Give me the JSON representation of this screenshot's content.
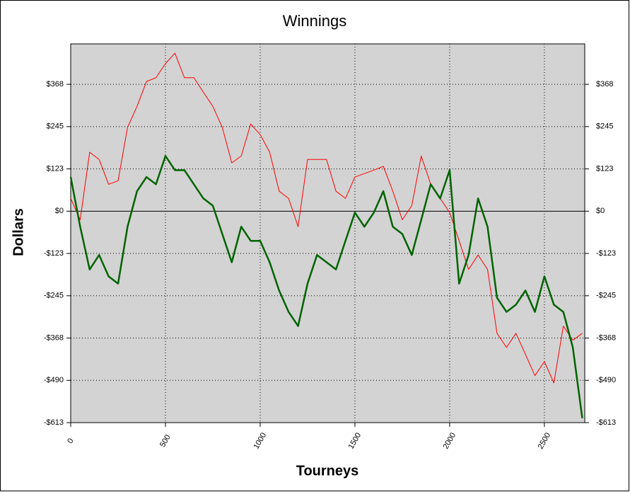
{
  "chart_data": {
    "type": "line",
    "title": "Winnings",
    "x_label": "Tourneys",
    "y_label": "Dollars",
    "x": [
      0,
      50,
      100,
      150,
      200,
      250,
      300,
      350,
      400,
      450,
      500,
      550,
      600,
      650,
      700,
      750,
      800,
      850,
      900,
      950,
      1000,
      1050,
      1100,
      1150,
      1200,
      1250,
      1300,
      1350,
      1400,
      1450,
      1500,
      1550,
      1600,
      1650,
      1700,
      1750,
      1800,
      1850,
      1900,
      1950,
      2000,
      2050,
      2100,
      2150,
      2200,
      2250,
      2300,
      2350,
      2400,
      2450,
      2500,
      2550,
      2600,
      2650,
      2700
    ],
    "series": [
      {
        "color": "#ff0000",
        "width": 1,
        "values": [
          37,
          -25,
          171,
          150,
          78,
          88,
          243,
          304,
          376,
          387,
          428,
          458,
          387,
          387,
          345,
          304,
          243,
          140,
          160,
          253,
          222,
          171,
          58,
          37,
          -45,
          150,
          150,
          150,
          58,
          37,
          99,
          109,
          119,
          130,
          58,
          -25,
          16,
          160,
          78,
          37,
          -4,
          -86,
          -169,
          -127,
          -169,
          -354,
          -395,
          -354,
          -415,
          -477,
          -436,
          -498,
          -333,
          -374,
          -354
        ]
      },
      {
        "color": "#006400",
        "width": 2.5,
        "values": [
          99,
          -45,
          -169,
          -127,
          -189,
          -210,
          -45,
          58,
          99,
          78,
          160,
          119,
          119,
          78,
          37,
          16,
          -66,
          -148,
          -45,
          -86,
          -86,
          -148,
          -230,
          -292,
          -333,
          -210,
          -127,
          -148,
          -169,
          -86,
          -4,
          -45,
          -4,
          58,
          -45,
          -66,
          -127,
          -25,
          78,
          37,
          119,
          -210,
          -127,
          37,
          -45,
          -251,
          -292,
          -271,
          -230,
          -292,
          -189,
          -271,
          -292,
          -395,
          -600
        ]
      }
    ],
    "xlim": [
      0,
      2713
    ],
    "xticks": [
      0,
      500,
      1000,
      1500,
      2000,
      2500
    ],
    "ylim": [
      -613,
      485
    ],
    "yticks": [
      {
        "value": -613,
        "label": "-$613"
      },
      {
        "value": -490.4,
        "label": "-$490"
      },
      {
        "value": -367.8,
        "label": "-$368"
      },
      {
        "value": -245.2,
        "label": "-$245"
      },
      {
        "value": -122.6,
        "label": "-$123"
      },
      {
        "value": 0,
        "label": "$0"
      },
      {
        "value": 122.6,
        "label": "$123"
      },
      {
        "value": 245.2,
        "label": "$245"
      },
      {
        "value": 367.8,
        "label": "$368"
      }
    ],
    "grid": true
  }
}
